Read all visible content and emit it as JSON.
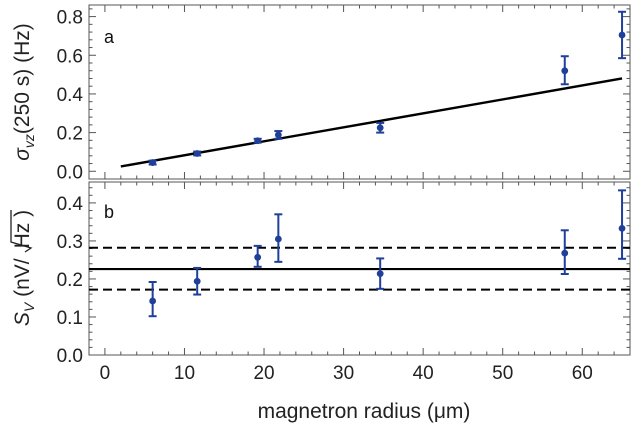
{
  "colors": {
    "points": "#1f3f99",
    "fit": "#000000",
    "frame": "#555555"
  },
  "xlabel": "magnetron radius (μm)",
  "chart_data": [
    {
      "panel": "a",
      "type": "scatter",
      "ylabel_main": "σ",
      "ylabel_sub": "vz",
      "ylabel_rest": "(250 s) (Hz)",
      "xlim": [
        -2,
        66
      ],
      "ylim": [
        -0.04,
        0.86
      ],
      "x_ticks": [
        0,
        10,
        20,
        30,
        40,
        50,
        60
      ],
      "y_ticks": [
        0.0,
        0.2,
        0.4,
        0.6,
        0.8
      ],
      "y_tick_labels": [
        "0.0",
        "0.2",
        "0.4",
        "0.6",
        "0.8"
      ],
      "series": [
        {
          "x": [
            6.0,
            11.6,
            19.2,
            21.8,
            34.6,
            57.8,
            65.0
          ],
          "y": [
            0.045,
            0.092,
            0.158,
            0.188,
            0.225,
            0.52,
            0.705
          ],
          "err_low": [
            0.01,
            0.01,
            0.01,
            0.02,
            0.025,
            0.07,
            0.12
          ],
          "err_high": [
            0.01,
            0.01,
            0.01,
            0.02,
            0.025,
            0.075,
            0.12
          ]
        }
      ],
      "fit_line": {
        "x": [
          2.0,
          65.0
        ],
        "y": [
          0.025,
          0.48
        ]
      }
    },
    {
      "panel": "b",
      "type": "scatter",
      "ylabel_main": "S",
      "ylabel_sub": "V",
      "ylabel_rest": " (nV/",
      "ylabel_sqrt": "Hz",
      "ylabel_close": " )",
      "xlim": [
        -2,
        66
      ],
      "ylim": [
        0.0,
        0.455
      ],
      "x_ticks": [
        0,
        10,
        20,
        30,
        40,
        50,
        60
      ],
      "x_tick_labels": [
        "0",
        "10",
        "20",
        "30",
        "40",
        "50",
        "60"
      ],
      "y_ticks": [
        0.0,
        0.1,
        0.2,
        0.3,
        0.4
      ],
      "y_tick_labels": [
        "0.0",
        "0.1",
        "0.2",
        "0.3",
        "0.4"
      ],
      "series": [
        {
          "x": [
            6.0,
            11.6,
            19.2,
            21.8,
            34.6,
            57.8,
            65.0
          ],
          "y": [
            0.142,
            0.194,
            0.257,
            0.305,
            0.214,
            0.268,
            0.333
          ],
          "err_low": [
            0.04,
            0.035,
            0.025,
            0.06,
            0.04,
            0.055,
            0.08
          ],
          "err_high": [
            0.05,
            0.035,
            0.03,
            0.065,
            0.04,
            0.06,
            0.1
          ]
        }
      ],
      "mean_line": 0.226,
      "band_lines": [
        0.282,
        0.172
      ]
    }
  ]
}
